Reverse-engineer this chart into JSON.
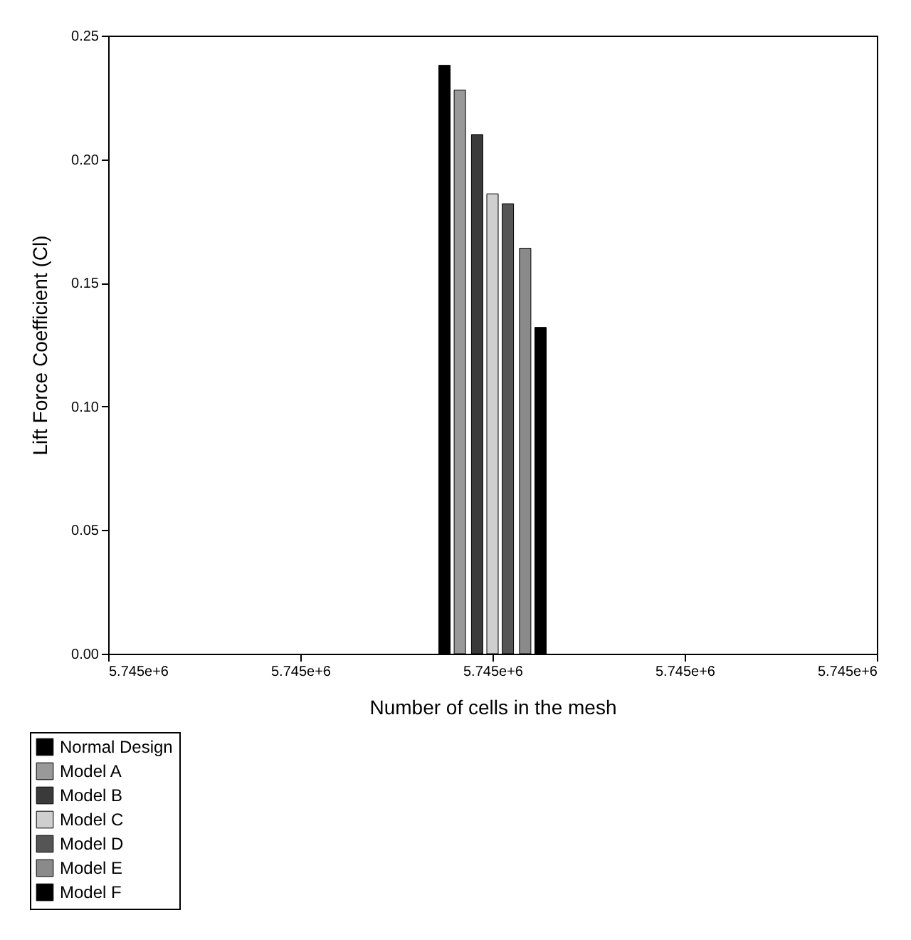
{
  "chart_data": {
    "type": "bar",
    "xlabel": "Number of cells in the mesh",
    "ylabel": "Lift Force Coefficient (Cl)",
    "xlim": [
      5744980,
      5745020
    ],
    "xticks": [
      {
        "value": 5744980,
        "label": "5.745e+6"
      },
      {
        "value": 5744990,
        "label": "5.745e+6"
      },
      {
        "value": 5745000,
        "label": "5.745e+6"
      },
      {
        "value": 5745010,
        "label": "5.745e+6"
      },
      {
        "value": 5745020,
        "label": "5.745e+6"
      }
    ],
    "ylim": [
      0,
      0.25
    ],
    "yticks": [
      {
        "value": 0,
        "label": "0.00"
      },
      {
        "value": 0.05,
        "label": "0.05"
      },
      {
        "value": 0.1,
        "label": "0.10"
      },
      {
        "value": 0.15,
        "label": "0.15"
      },
      {
        "value": 0.2,
        "label": "0.20"
      },
      {
        "value": 0.25,
        "label": "0.25"
      }
    ],
    "grid": false,
    "legend": "bottom left",
    "series": [
      {
        "name": "Normal Design",
        "color": "#000000",
        "x": [
          5744997.5
        ],
        "values": [
          0.238
        ]
      },
      {
        "name": "Model A",
        "color": "#999999",
        "x": [
          5744998.3
        ],
        "values": [
          0.228
        ]
      },
      {
        "name": "Model B",
        "color": "#3a3a3a",
        "x": [
          5744999.2
        ],
        "values": [
          0.21
        ]
      },
      {
        "name": "Model C",
        "color": "#cfcfcf",
        "x": [
          5745000
        ],
        "values": [
          0.186
        ]
      },
      {
        "name": "Model D",
        "color": "#555555",
        "x": [
          5745000.8
        ],
        "values": [
          0.182
        ]
      },
      {
        "name": "Model E",
        "color": "#8a8a8a",
        "x": [
          5745001.7
        ],
        "values": [
          0.164
        ]
      },
      {
        "name": "Model F",
        "color": "#000001",
        "x": [
          5745002.5
        ],
        "values": [
          0.132
        ]
      }
    ]
  }
}
